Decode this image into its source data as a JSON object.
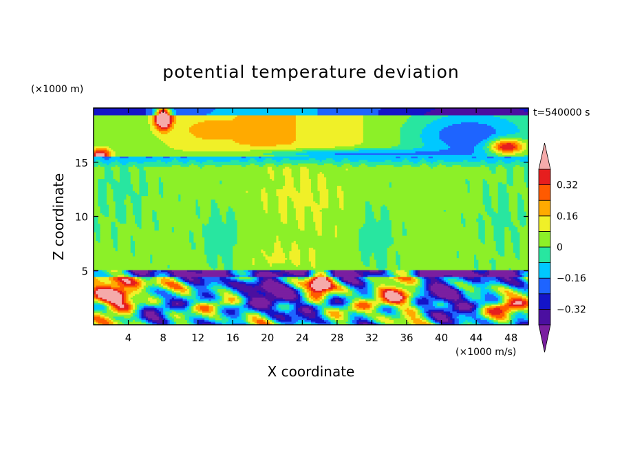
{
  "chart_data": {
    "type": "heatmap",
    "title": "potential temperature deviation",
    "xlabel": "X coordinate",
    "ylabel": "Z coordinate",
    "x_unit": "(×1000 m/s)",
    "y_unit": "(×1000 m)",
    "time_label": "t=540000 s",
    "xlim": [
      0,
      50
    ],
    "ylim": [
      0,
      20
    ],
    "x_ticks": [
      4,
      8,
      12,
      16,
      20,
      24,
      28,
      32,
      36,
      40,
      44,
      48
    ],
    "y_ticks": [
      5,
      10,
      15
    ],
    "colorbar": {
      "levels": [
        -0.4,
        -0.32,
        -0.24,
        -0.16,
        -0.08,
        0,
        0.08,
        0.16,
        0.24,
        0.32,
        0.4
      ],
      "tick_labels": [
        "0.32",
        "0.16",
        "0",
        "−0.16",
        "−0.32"
      ],
      "tick_values": [
        0.32,
        0.16,
        0,
        -0.16,
        -0.32
      ],
      "colors": [
        "#7a1fa0",
        "#4b0fa0",
        "#1414c8",
        "#1e64ff",
        "#00c8ff",
        "#28e6a0",
        "#8cf028",
        "#f0f028",
        "#ffaa00",
        "#ff5a00",
        "#e61e1e",
        "#f5aaaa"
      ],
      "under_color": "#7a1fa0",
      "over_color": "#f5aaaa"
    }
  }
}
